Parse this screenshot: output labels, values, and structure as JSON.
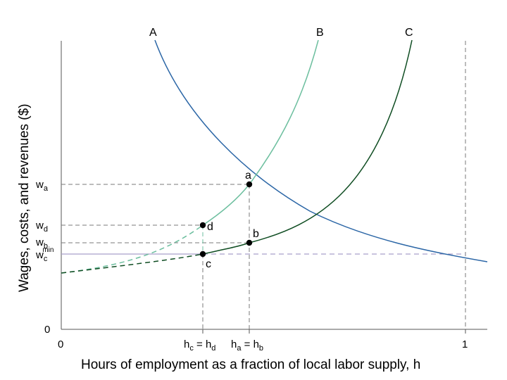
{
  "figure": {
    "y_axis_title": "Wages, costs, and revenues ($)",
    "x_axis_title": "Hours of employment as a fraction of local labor supply, h"
  },
  "x_ticks": {
    "zero": "0",
    "one": "1",
    "hc_base": "h",
    "hc_sub": "c",
    "hc_mid": " = h",
    "hd_sub": "d",
    "ha_base": "h",
    "ha_sub": "a",
    "ha_mid": " = h",
    "hb_sub": "b"
  },
  "y_ticks": {
    "zero": "0",
    "w": "w",
    "wa_sub": "a",
    "wd_sub": "d",
    "wb_sub": "b",
    "wc_sub": "c",
    "wc_sup": "min"
  },
  "curves": {
    "A": {
      "label": "A",
      "color": "#2b66a6"
    },
    "B": {
      "label": "B",
      "color": "#6dbf9f"
    },
    "C": {
      "label": "C",
      "color": "#0f4d22"
    }
  },
  "points": {
    "a": "a",
    "b": "b",
    "c": "c",
    "d": "d"
  },
  "colors": {
    "guide": "#7a7a7a",
    "min_wage_line": "#a99fc9",
    "axis": "#555555",
    "point": "#000000"
  }
}
